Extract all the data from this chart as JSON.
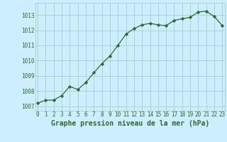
{
  "x": [
    0,
    1,
    2,
    3,
    4,
    5,
    6,
    7,
    8,
    9,
    10,
    11,
    12,
    13,
    14,
    15,
    16,
    17,
    18,
    19,
    20,
    21,
    22,
    23
  ],
  "y": [
    1007.2,
    1007.4,
    1007.4,
    1007.7,
    1008.3,
    1008.1,
    1008.55,
    1009.2,
    1009.8,
    1010.3,
    1011.0,
    1011.75,
    1012.1,
    1012.35,
    1012.45,
    1012.35,
    1012.3,
    1012.65,
    1012.75,
    1012.85,
    1013.2,
    1013.25,
    1012.9,
    1012.3
  ],
  "line_color": "#2d6a2d",
  "marker": "D",
  "marker_size": 2.2,
  "bg_color": "#cceeff",
  "grid_color": "#aacccc",
  "title": "Graphe pression niveau de la mer (hPa)",
  "ylabel_ticks": [
    1007,
    1008,
    1009,
    1010,
    1011,
    1012,
    1013
  ],
  "xticks": [
    0,
    1,
    2,
    3,
    4,
    5,
    6,
    7,
    8,
    9,
    10,
    11,
    12,
    13,
    14,
    15,
    16,
    17,
    18,
    19,
    20,
    21,
    22,
    23
  ],
  "ylim": [
    1006.7,
    1013.8
  ],
  "xlim": [
    -0.3,
    23.3
  ],
  "tick_color": "#2d6a2d",
  "tick_fontsize": 5.5,
  "title_fontsize": 7.0,
  "title_fontweight": "bold",
  "linewidth": 0.9
}
